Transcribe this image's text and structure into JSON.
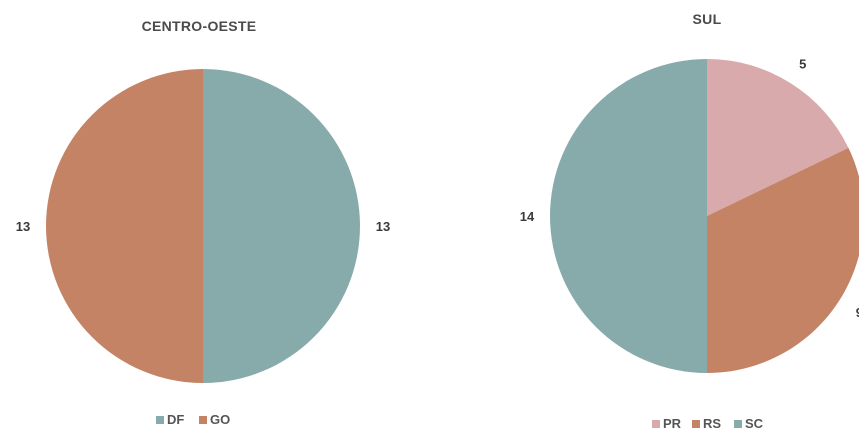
{
  "chart_data": [
    {
      "type": "pie",
      "title": "CENTRO-OESTE",
      "categories": [
        "DF",
        "GO"
      ],
      "values": [
        13,
        13
      ],
      "colors": [
        "#87aaaa",
        "#c48365"
      ],
      "legend": "bottom",
      "data_labels": [
        "13",
        "13"
      ]
    },
    {
      "type": "pie",
      "title": "SUL",
      "categories": [
        "PR",
        "RS",
        "SC"
      ],
      "values": [
        5,
        9,
        14
      ],
      "colors": [
        "#d9aaac",
        "#c48365",
        "#87aaaa"
      ],
      "legend": "bottom",
      "data_labels": [
        "5",
        "9",
        "14"
      ]
    }
  ]
}
